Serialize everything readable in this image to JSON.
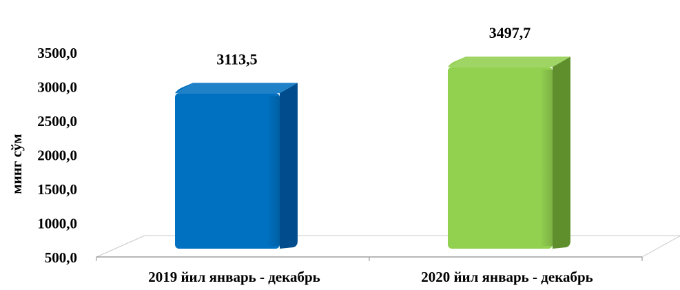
{
  "chart_data": {
    "type": "bar",
    "title": "",
    "xlabel": "",
    "ylabel": "минг сўм",
    "categories": [
      "2019 йил январь - декабрь",
      "2020 йил январь - декабрь"
    ],
    "values": [
      3113.5,
      3497.7
    ],
    "value_labels": [
      "3113,5",
      "3497,7"
    ],
    "ylim": [
      500,
      3500
    ],
    "y_ticks": [
      500,
      1000,
      1500,
      2000,
      2500,
      3000,
      3500
    ],
    "y_tick_labels": [
      "500,0",
      "1000,0",
      "1500,0",
      "2000,0",
      "2500,0",
      "3000,0",
      "3500,0"
    ],
    "bar_colors": [
      "#0070c0",
      "#92d050"
    ],
    "bar_side_colors": [
      "#004c8c",
      "#5f8f2c"
    ],
    "grid": false,
    "legend": "none",
    "style": "3d-column"
  }
}
